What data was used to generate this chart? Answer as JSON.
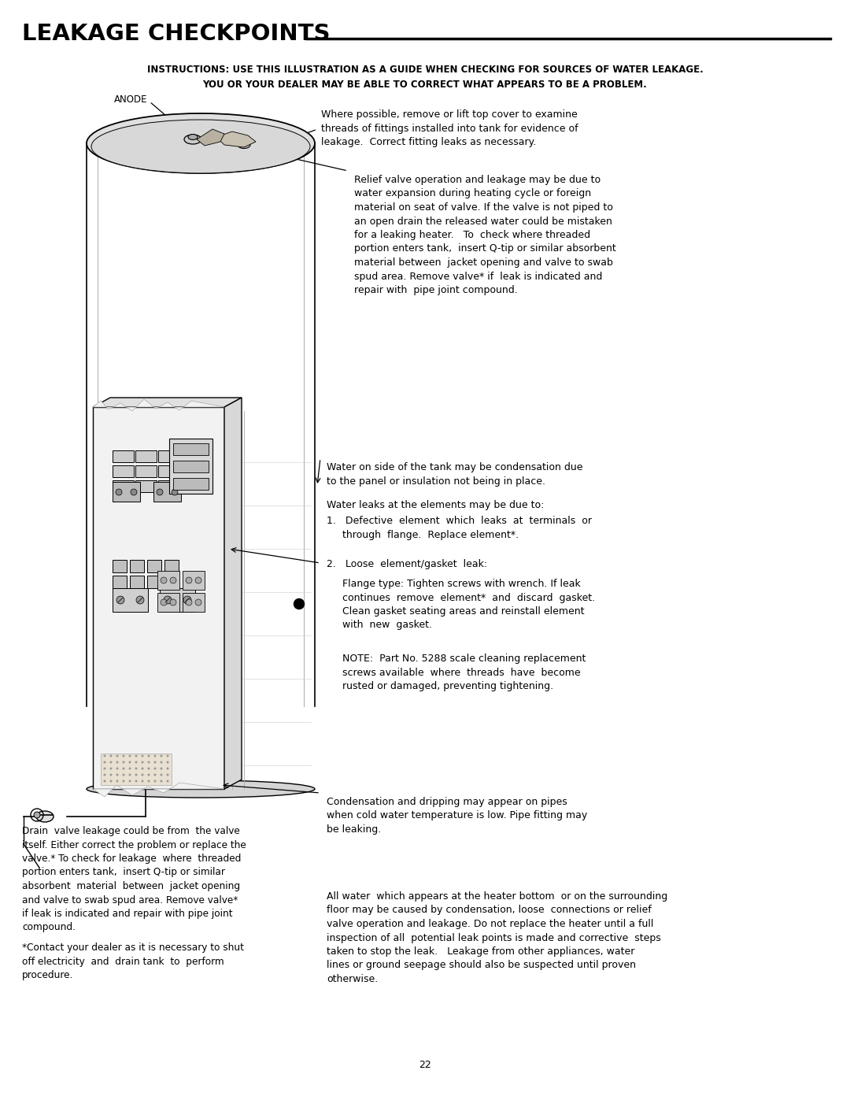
{
  "bg_color": "#ffffff",
  "title": "LEAKAGE CHECKPOINTS",
  "instructions_line1": "INSTRUCTIONS: USE THIS ILLUSTRATION AS A GUIDE WHEN CHECKING FOR SOURCES OF WATER LEAKAGE.",
  "instructions_line2": "YOU OR YOUR DEALER MAY BE ABLE TO CORRECT WHAT APPEARS TO BE A PROBLEM.",
  "page_number": "22",
  "anode_label": "ANODE",
  "top_fitting_text": "Where possible, remove or lift top cover to examine\nthreads of fittings installed into tank for evidence of\nleakage.  Correct fitting leaks as necessary.",
  "relief_valve_text": "Relief valve operation and leakage may be due to\nwater expansion during heating cycle or foreign\nmaterial on seat of valve. If the valve is not piped to\nan open drain the released water could be mistaken\nfor a leaking heater.   To  check where threaded\nportion enters tank,  insert Q-tip or similar absorbent\nmaterial between  jacket opening and valve to swab\nspud area. Remove valve* if  leak is indicated and\nrepair with  pipe joint compound.",
  "condensation_text": "Water on side of the tank may be condensation due\nto the panel or insulation not being in place.",
  "element_leak_intro": "Water leaks at the elements may be due to:",
  "element_item1": "1.   Defective  element  which  leaks  at  terminals  or\n     through  flange.  Replace element*.",
  "element_item2": "2.   Loose  element/gasket  leak:",
  "flange_text": "     Flange type: Tighten screws with wrench. If leak\n     continues  remove  element*  and  discard  gasket.\n     Clean gasket seating areas and reinstall element\n     with  new  gasket.",
  "note_text": "     NOTE:  Part No. 5288 scale cleaning replacement\n     screws available  where  threads  have  become\n     rusted or damaged, preventing tightening.",
  "condensation_pipe_text": "Condensation and dripping may appear on pipes\nwhen cold water temperature is low. Pipe fitting may\nbe leaking.",
  "drain_valve_text": "Drain  valve leakage could be from  the valve\nitself. Either correct the problem or replace the\nvalve.* To check for leakage  where  threaded\nportion enters tank,  insert Q-tip or similar\nabsorbent  material  between  jacket opening\nand valve to swab spud area. Remove valve*\nif leak is indicated and repair with pipe joint\ncompound.",
  "bottom_text": "All water  which appears at the heater bottom  or on the surrounding\nfloor may be caused by condensation, loose  connections or relief\nvalve operation and leakage. Do not replace the heater until a full\ninspection of all  potential leak points is made and corrective  steps\ntaken to stop the leak.   Leakage from other appliances, water\nlines or ground seepage should also be suspected until proven\notherwise.",
  "contact_text": "*Contact your dealer as it is necessary to shut\noff electricity  and  drain tank  to  perform\nprocedure."
}
